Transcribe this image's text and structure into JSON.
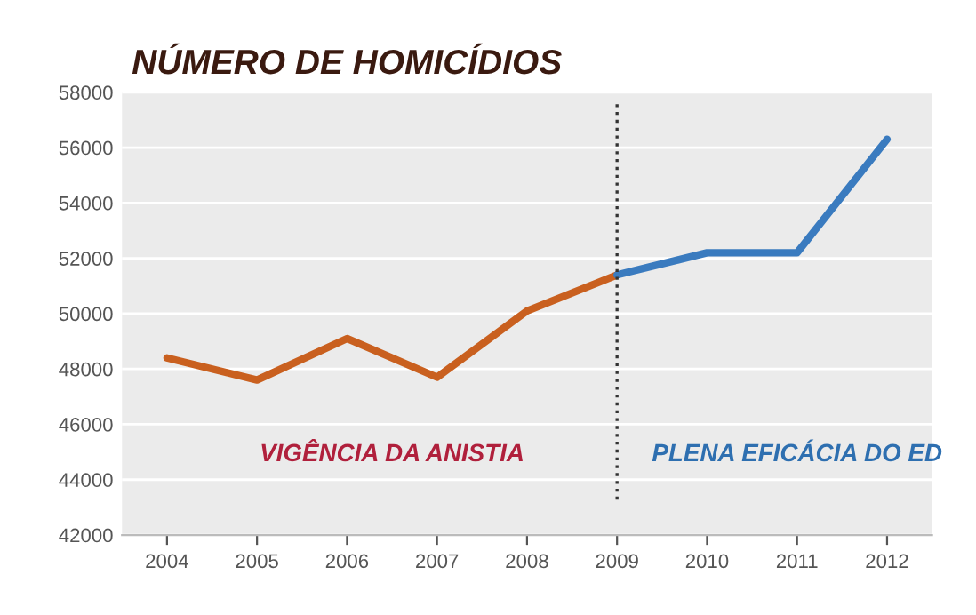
{
  "chart_data": {
    "type": "line",
    "title": "NÚMERO DE HOMICÍDIOS",
    "categories": [
      "2004",
      "2005",
      "2006",
      "2007",
      "2008",
      "2009",
      "2010",
      "2011",
      "2012"
    ],
    "series": [
      {
        "color": "#c9601f",
        "values": [
          48400,
          47600,
          49100,
          47700,
          50100,
          51400,
          null,
          null,
          null
        ]
      },
      {
        "color": "#3a7bbf",
        "values": [
          null,
          null,
          null,
          null,
          null,
          51400,
          52200,
          52200,
          56300
        ]
      }
    ],
    "ylim": [
      42000,
      58000
    ],
    "yticks": [
      42000,
      44000,
      46000,
      48000,
      50000,
      52000,
      54000,
      56000,
      58000
    ],
    "grid": "y",
    "legend": false,
    "marker": "none",
    "line_style": "solid",
    "ref_lines": [
      {
        "axis": "x",
        "value": "2009",
        "color": "#333333",
        "line_style": "dotted"
      }
    ],
    "annotations": [
      "VIGÊNCIA DA ANISTIA",
      "PLENA EFICÁCIA DO ED"
    ]
  }
}
